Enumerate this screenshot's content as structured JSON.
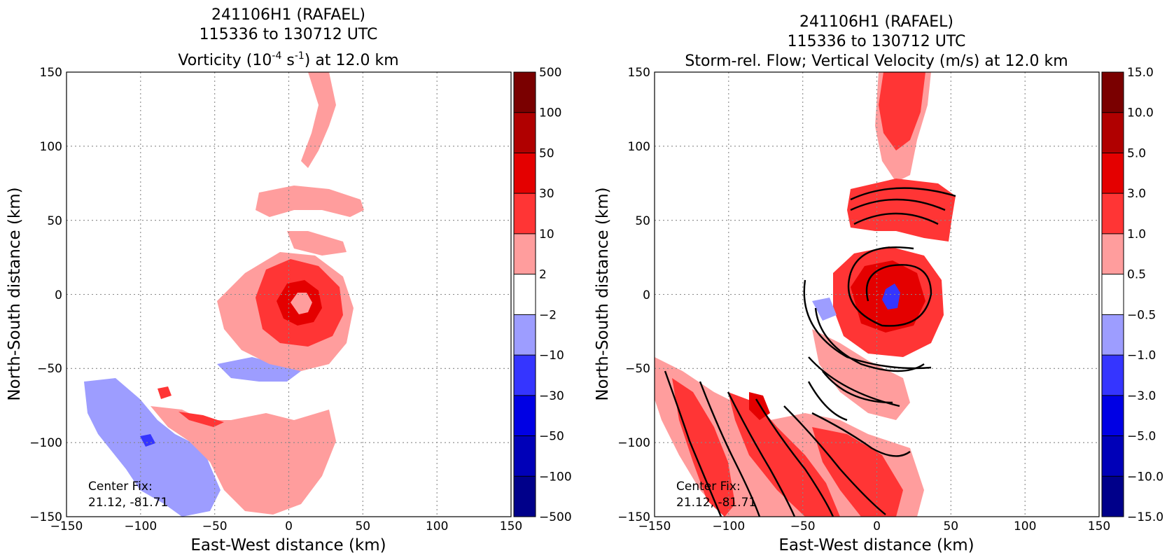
{
  "chart_data": [
    {
      "type": "heatmap",
      "title_lines": [
        "241106H1 (RAFAEL)",
        "115336 to 130712 UTC"
      ],
      "title_line3": {
        "prefix": "Vorticity (10",
        "sup1": "-4",
        "mid": " s",
        "sup2": "-1",
        "suffix": ") at 12.0 km"
      },
      "xlabel": "East-West distance (km)",
      "ylabel": "North-South distance (km)",
      "xlim": [
        -150,
        150
      ],
      "ylim": [
        -150,
        150
      ],
      "xticks": [
        "−150",
        "−100",
        "−50",
        "0",
        "50",
        "100",
        "150"
      ],
      "yticks": [
        "−150",
        "−100",
        "−50",
        "0",
        "50",
        "100",
        "150"
      ],
      "grid": true,
      "colorbar": {
        "tick_labels": [
          "500",
          "100",
          "50",
          "30",
          "10",
          "2",
          "−2",
          "−10",
          "−30",
          "−50",
          "−100",
          "−500"
        ],
        "colors_top_to_bottom": [
          "#7a0000",
          "#b00000",
          "#e40000",
          "#ff3535",
          "#ff9d9d",
          "#ffffff",
          "#9d9dff",
          "#3535ff",
          "#0000e4",
          "#0000b8",
          "#00008a"
        ]
      },
      "annotation_lines": [
        "Center Fix:",
        "21.12, -81.71"
      ]
    },
    {
      "type": "heatmap",
      "title_lines": [
        "241106H1 (RAFAEL)",
        "115336 to 130712 UTC",
        "Storm-rel. Flow; Vertical Velocity (m/s) at 12.0 km"
      ],
      "xlabel": "East-West distance (km)",
      "ylabel": "North-South distance (km)",
      "xlim": [
        -150,
        150
      ],
      "ylim": [
        -150,
        150
      ],
      "xticks": [
        "−150",
        "−100",
        "−50",
        "0",
        "50",
        "100",
        "150"
      ],
      "yticks": [
        "−150",
        "−100",
        "−50",
        "0",
        "50",
        "100",
        "150"
      ],
      "grid": true,
      "colorbar": {
        "tick_labels": [
          "15.0",
          "10.0",
          "5.0",
          "3.0",
          "1.0",
          "0.5",
          "−0.5",
          "−1.0",
          "−3.0",
          "−5.0",
          "−10.0",
          "−15.0"
        ],
        "colors_top_to_bottom": [
          "#7a0000",
          "#b00000",
          "#e40000",
          "#ff3535",
          "#ff9d9d",
          "#ffffff",
          "#9d9dff",
          "#3535ff",
          "#0000e4",
          "#0000b8",
          "#00008a"
        ]
      },
      "annotation_lines": [
        "Center Fix:",
        "21.12, -81.71"
      ]
    }
  ]
}
